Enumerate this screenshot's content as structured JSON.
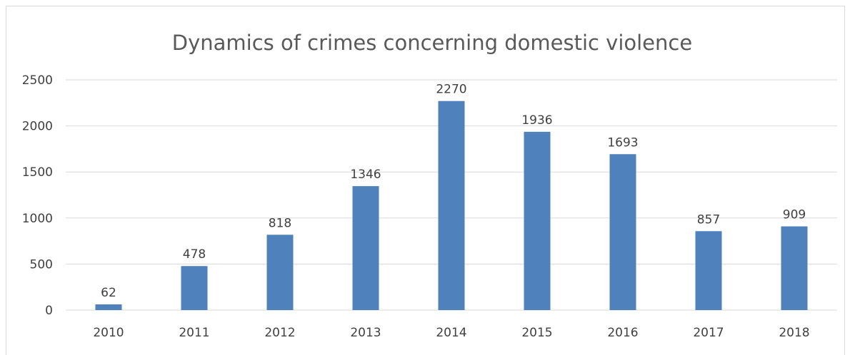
{
  "chart_data": {
    "type": "bar",
    "title": "Dynamics of crimes concerning domestic violence",
    "categories": [
      "2010",
      "2011",
      "2012",
      "2013",
      "2014",
      "2015",
      "2016",
      "2017",
      "2018"
    ],
    "values": [
      62,
      478,
      818,
      1346,
      2270,
      1936,
      1693,
      857,
      909
    ],
    "data_labels": [
      "62",
      "478",
      "818",
      "1346",
      "2270",
      "1936",
      "1693",
      "857",
      "909"
    ],
    "ylim": [
      0,
      2500
    ],
    "yticks": [
      "0",
      "500",
      "1000",
      "1500",
      "2000",
      "2500"
    ],
    "xlabel": "",
    "ylabel": "",
    "grid": true,
    "legend": "none",
    "bar_color": "#4f81bd",
    "gridline_color": "#d9d9d9"
  }
}
